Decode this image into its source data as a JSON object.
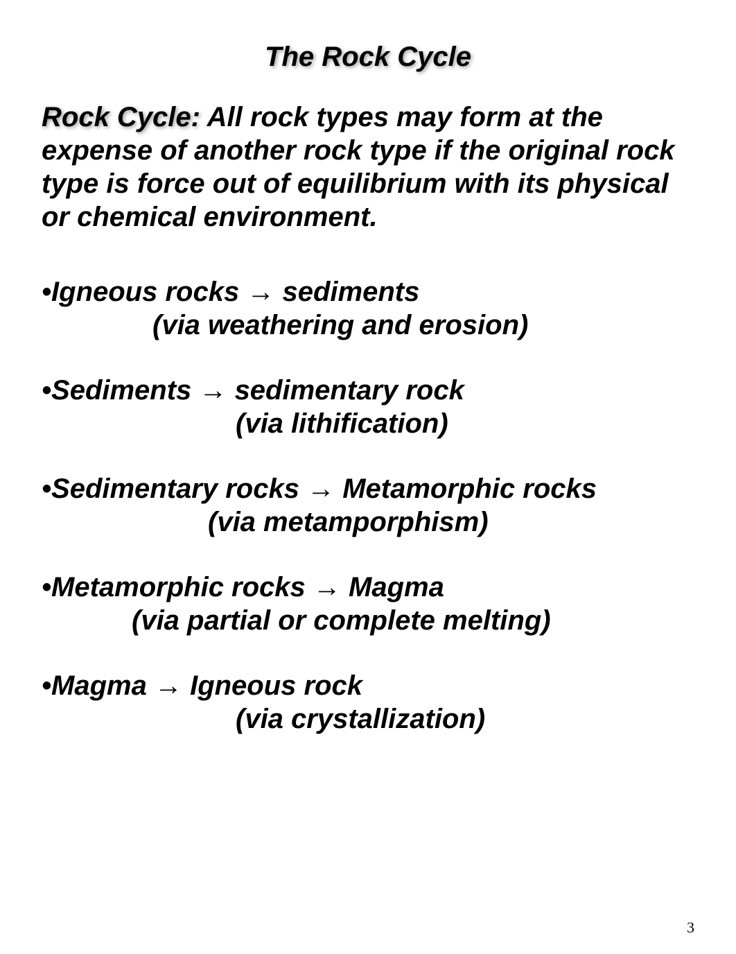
{
  "title": "The Rock Cycle",
  "definition": {
    "label": "Rock Cycle:",
    "text": " All rock types may form at the expense of another rock type if the original rock type is force out of equilibrium with its physical or chemical environment."
  },
  "bullets": [
    {
      "from": "Igneous rocks",
      "to": "sediments",
      "via": "(via weathering and erosion)",
      "indent_class": "indent-1"
    },
    {
      "from": "Sediments",
      "to": "sedimentary rock",
      "via": "(via lithification)",
      "indent_class": "indent-2"
    },
    {
      "from": "Sedimentary rocks",
      "to": "Metamorphic rocks",
      "via": "(via metamporphism)",
      "indent_class": "indent-3"
    },
    {
      "from": "Metamorphic rocks",
      "to": "Magma",
      "via": "(via partial or complete melting)",
      "indent_class": "indent-4"
    },
    {
      "from": "Magma",
      "to": "Igneous rock",
      "via": "(via crystallization)",
      "indent_class": "indent-2"
    }
  ],
  "arrow_symbol": "→",
  "bullet_symbol": "•",
  "page_number": "3",
  "colors": {
    "background": "#ffffff",
    "text": "#000000",
    "shadow": "rgba(0,0,0,0.4)"
  },
  "typography": {
    "title_fontsize": 40,
    "body_fontsize": 40,
    "page_number_fontsize": 22,
    "font_family": "Arial, Helvetica, sans-serif",
    "font_weight": "bold",
    "font_style": "italic"
  }
}
